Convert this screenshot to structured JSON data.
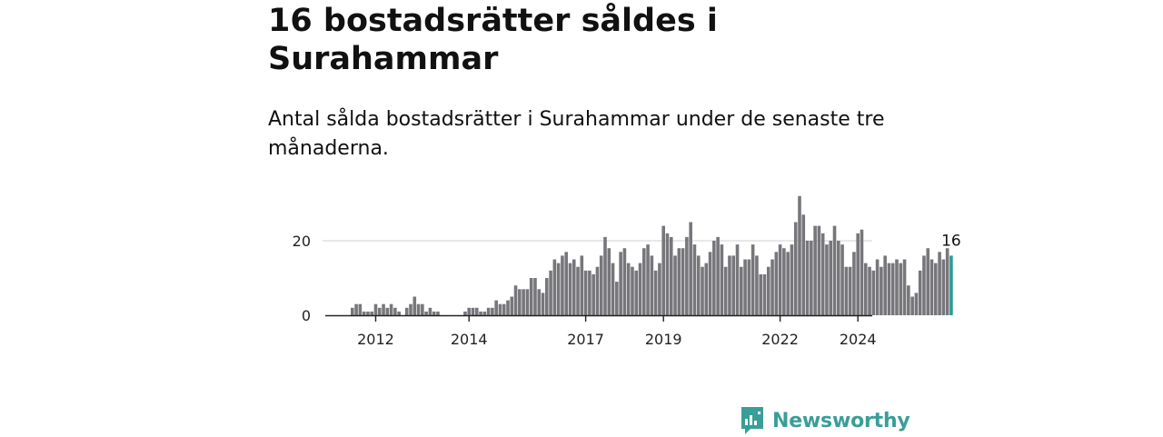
{
  "headline": "16 bostadsrätter såldes i Surahammar",
  "subtitle": "Antal sålda bostadsrätter i Surahammar under de senaste tre månaderna.",
  "brand": {
    "name": "Newsworthy",
    "color": "#3a9e98",
    "icon": "newsworthy-logo-icon"
  },
  "chart_data": {
    "type": "bar",
    "title": "",
    "xlabel": "",
    "ylabel": "",
    "ylim": [
      0,
      33
    ],
    "yticks": [
      0,
      20
    ],
    "x_tick_labels": [
      "2012",
      "2014",
      "2017",
      "2019",
      "2022",
      "2024"
    ],
    "x_tick_index": [
      6,
      30,
      60,
      80,
      110,
      130
    ],
    "bar_color": "#77767b",
    "highlight_color": "#2a9d94",
    "highlight_label": "16",
    "values": [
      2,
      3,
      3,
      1,
      1,
      1,
      3,
      2,
      3,
      2,
      3,
      2,
      1,
      0,
      2,
      3,
      5,
      3,
      3,
      1,
      2,
      1,
      1,
      0,
      0,
      0,
      0,
      0,
      0,
      1,
      2,
      2,
      2,
      1,
      1,
      2,
      2,
      4,
      3,
      3,
      4,
      5,
      8,
      7,
      7,
      7,
      10,
      10,
      7,
      6,
      10,
      12,
      15,
      14,
      16,
      17,
      14,
      15,
      13,
      16,
      12,
      12,
      11,
      13,
      16,
      21,
      18,
      14,
      9,
      17,
      18,
      14,
      13,
      12,
      14,
      18,
      19,
      16,
      12,
      14,
      24,
      22,
      21,
      16,
      18,
      18,
      21,
      25,
      19,
      16,
      13,
      14,
      17,
      20,
      21,
      19,
      13,
      16,
      16,
      19,
      13,
      15,
      15,
      19,
      16,
      11,
      11,
      13,
      15,
      17,
      19,
      18,
      17,
      19,
      25,
      32,
      27,
      20,
      20,
      24,
      24,
      22,
      19,
      20,
      24,
      20,
      19,
      13,
      13,
      17,
      22,
      23,
      14,
      13,
      12,
      15,
      13,
      16,
      14,
      14,
      15,
      14,
      15,
      8,
      5,
      6,
      12,
      16,
      18,
      15,
      14,
      17,
      15,
      18,
      16
    ]
  }
}
